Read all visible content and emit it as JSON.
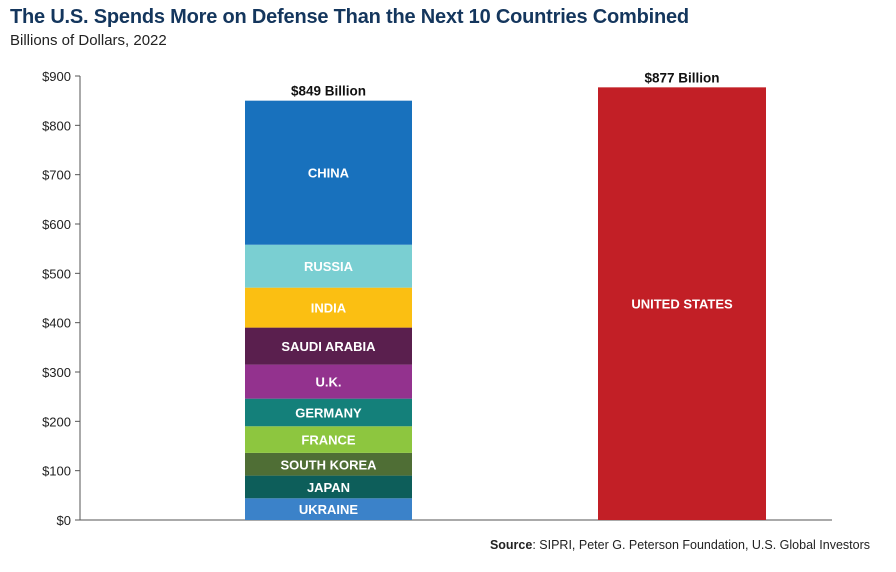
{
  "title": "The U.S. Spends More on Defense Than the Next 10 Countries Combined",
  "subtitle": "Billions of Dollars, 2022",
  "source": {
    "label": "Source",
    "text": ": SIPRI, Peter G. Peterson Foundation, U.S. Global Investors"
  },
  "chart_data": {
    "type": "bar",
    "stacked": true,
    "title": "The U.S. Spends More on Defense Than the Next 10 Countries Combined",
    "subtitle": "Billions of Dollars, 2022",
    "xlabel": "",
    "ylabel": "",
    "ylim": [
      0,
      900
    ],
    "yticks": [
      0,
      100,
      200,
      300,
      400,
      500,
      600,
      700,
      800,
      900
    ],
    "ytick_labels": [
      "$0",
      "$100",
      "$200",
      "$300",
      "$400",
      "$500",
      "$600",
      "$700",
      "$800",
      "$900"
    ],
    "grid": false,
    "legend": "none",
    "bars": [
      {
        "total_label": "$849 Billion",
        "segments": [
          {
            "name": "UKRAINE",
            "value": 44,
            "color": "#3b82c9"
          },
          {
            "name": "JAPAN",
            "value": 46,
            "color": "#0d5e5a"
          },
          {
            "name": "SOUTH KOREA",
            "value": 46,
            "color": "#4f6e35"
          },
          {
            "name": "FRANCE",
            "value": 54,
            "color": "#8dc63f"
          },
          {
            "name": "GERMANY",
            "value": 56,
            "color": "#14807a"
          },
          {
            "name": "U.K.",
            "value": 69,
            "color": "#93328e"
          },
          {
            "name": "SAUDI ARABIA",
            "value": 75,
            "color": "#5a1f4e"
          },
          {
            "name": "INDIA",
            "value": 81,
            "color": "#fbbf12"
          },
          {
            "name": "RUSSIA",
            "value": 87,
            "color": "#7acfd2"
          },
          {
            "name": "CHINA",
            "value": 292,
            "color": "#1871bd"
          }
        ]
      },
      {
        "total_label": "$877 Billion",
        "segments": [
          {
            "name": "UNITED STATES",
            "value": 877,
            "color": "#c21f26"
          }
        ]
      }
    ]
  }
}
